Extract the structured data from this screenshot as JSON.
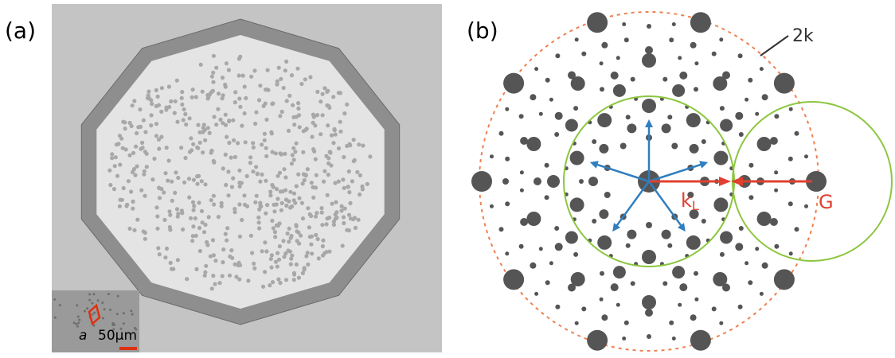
{
  "panels": [
    {
      "label": "(a)",
      "inset": {
        "lattice_label": "a",
        "scale_bar": "50μm"
      }
    },
    {
      "label": "(b)",
      "annotations": {
        "circle": "2k",
        "laser": "k",
        "laser_sub": "L",
        "reciprocal": "G"
      }
    }
  ]
}
